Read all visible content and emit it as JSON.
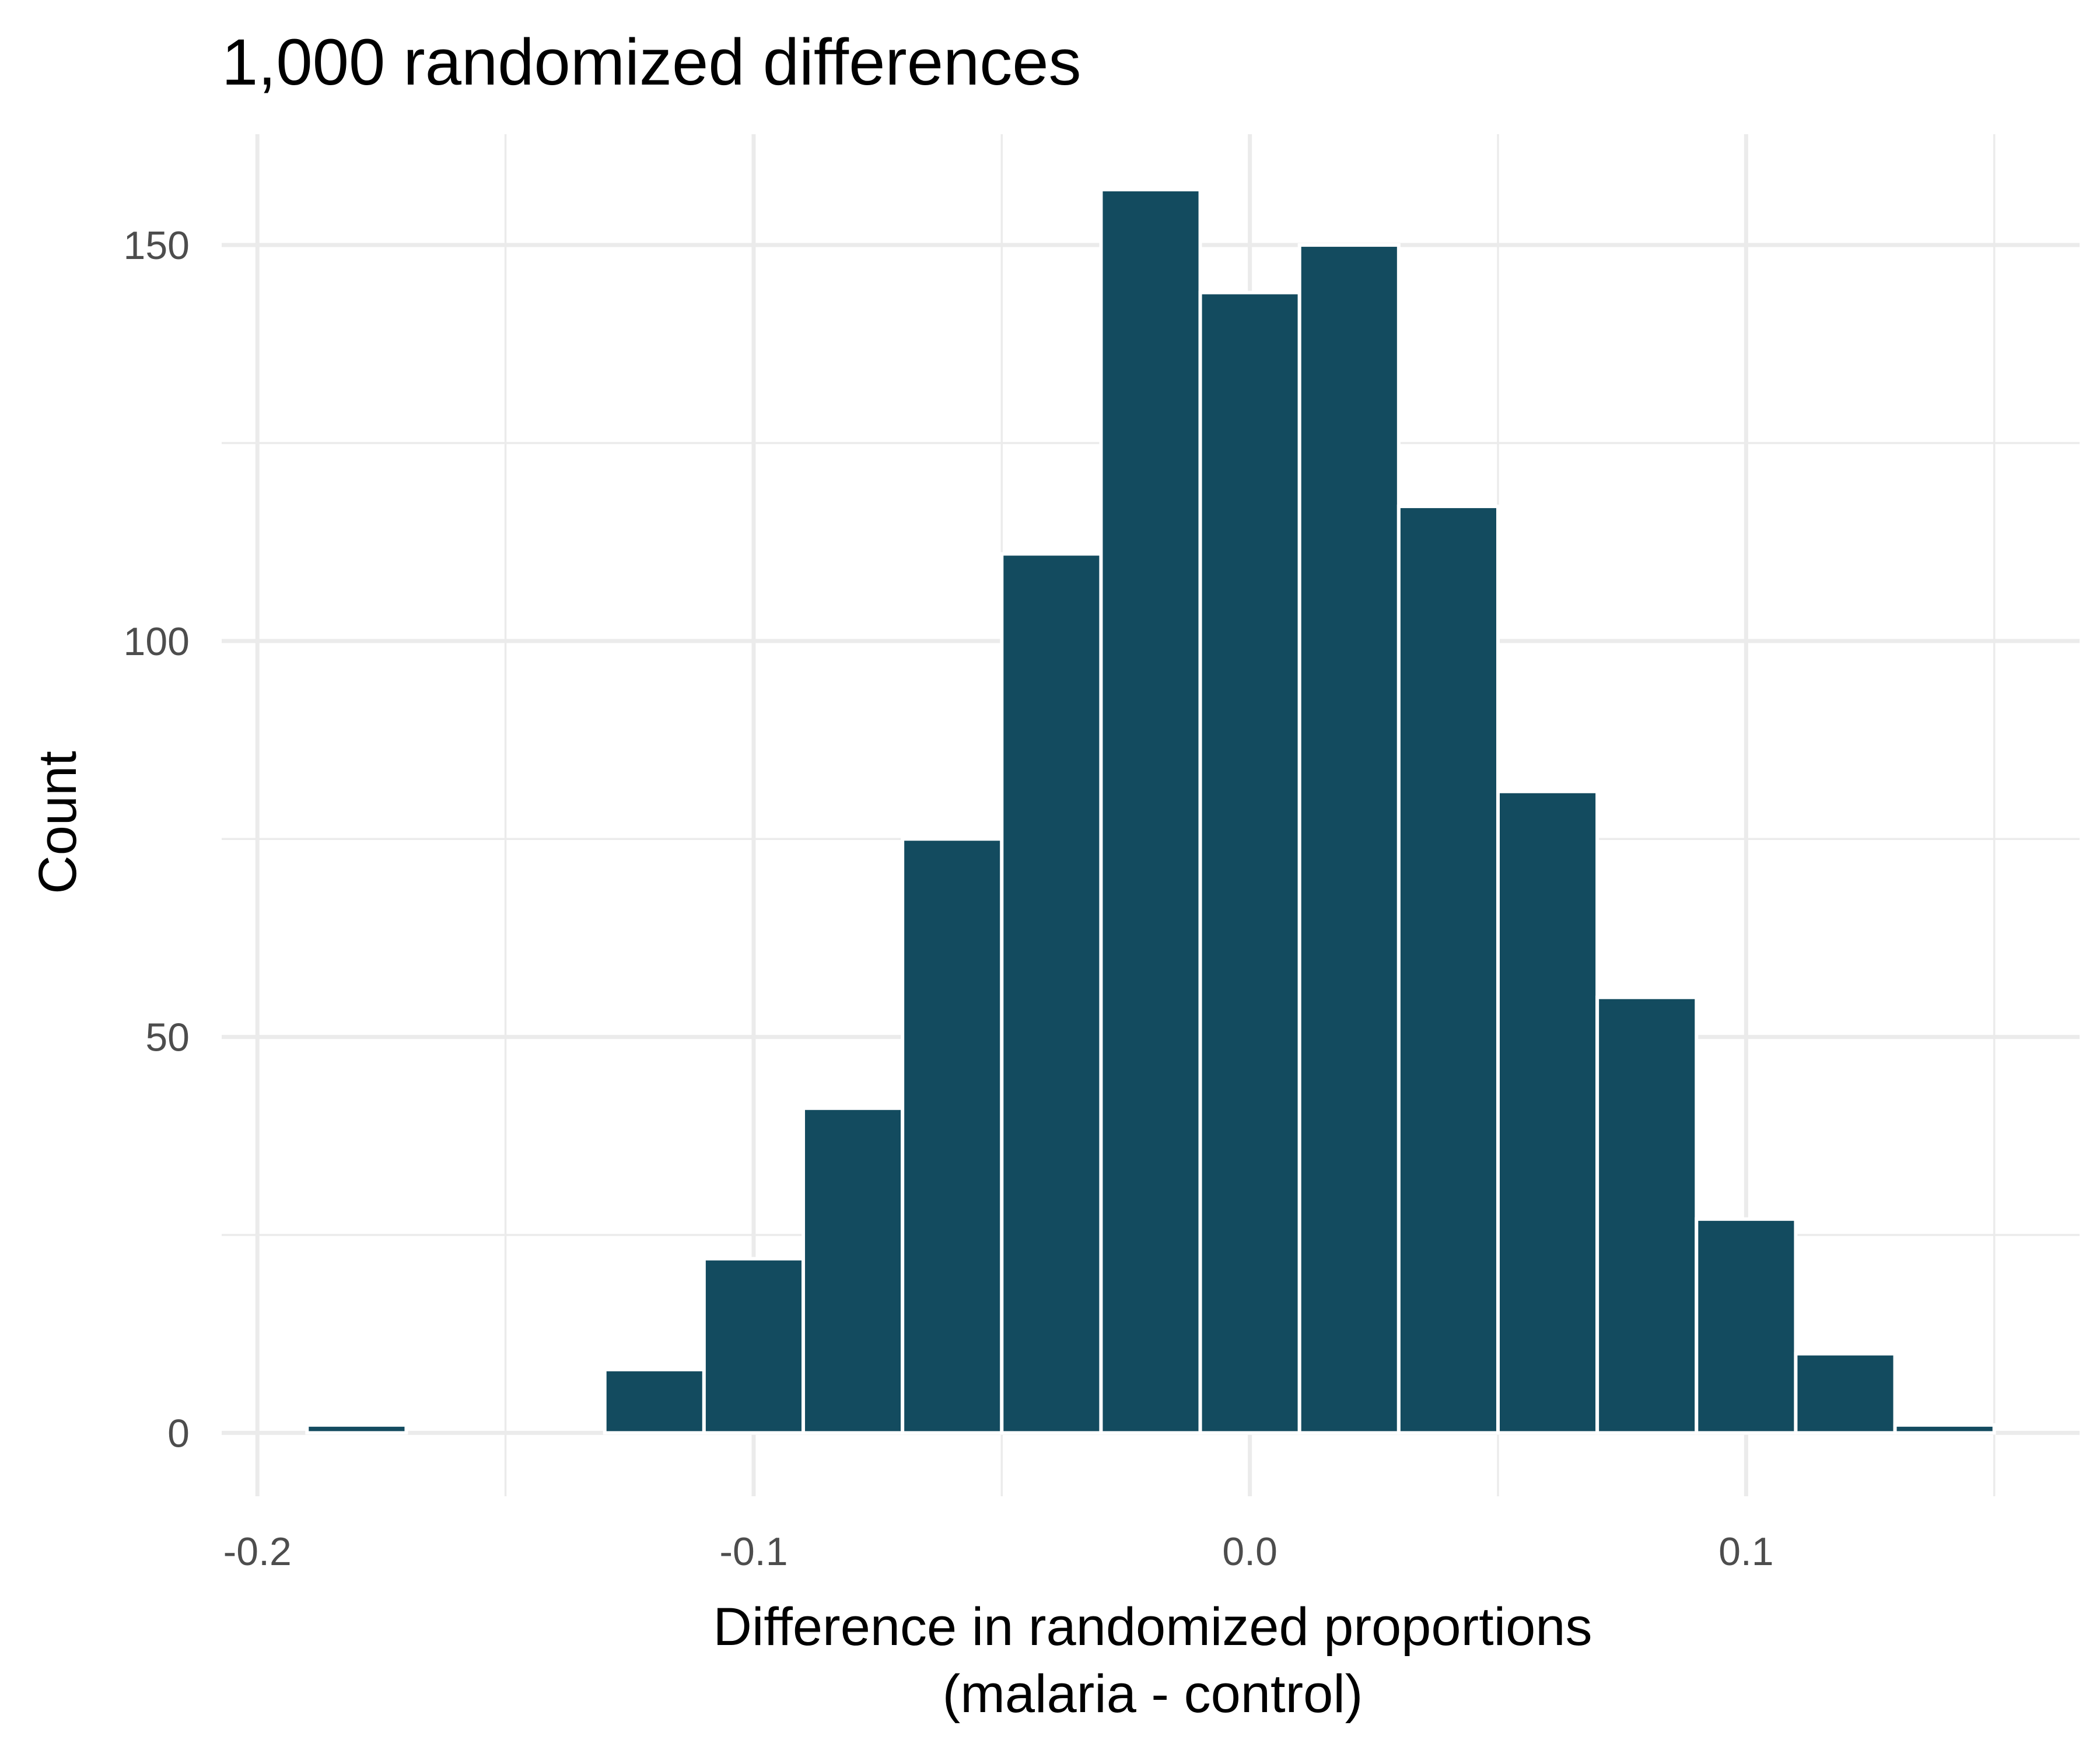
{
  "chart_data": {
    "type": "bar",
    "title": "1,000 randomized differences",
    "xlabel_lines": [
      "Difference in randomized proportions",
      "(malaria - control)"
    ],
    "ylabel": "Count",
    "xlim": [
      -0.2072,
      0.1672
    ],
    "ylim": [
      -8,
      164
    ],
    "x_ticks": [
      -0.2,
      -0.1,
      0.0,
      0.1
    ],
    "x_tick_labels": [
      "-0.2",
      "-0.1",
      "0.0",
      "0.1"
    ],
    "y_ticks": [
      0,
      50,
      100,
      150
    ],
    "y_tick_labels": [
      "0",
      "50",
      "100",
      "150"
    ],
    "grid": true,
    "bar_color": "#134b5f",
    "bins": [
      {
        "x0": -0.19,
        "x1": -0.17,
        "count": 1
      },
      {
        "x0": -0.17,
        "x1": -0.15,
        "count": 0
      },
      {
        "x0": -0.15,
        "x1": -0.13,
        "count": 0
      },
      {
        "x0": -0.13,
        "x1": -0.11,
        "count": 8
      },
      {
        "x0": -0.11,
        "x1": -0.09,
        "count": 22
      },
      {
        "x0": -0.09,
        "x1": -0.07,
        "count": 41
      },
      {
        "x0": -0.07,
        "x1": -0.05,
        "count": 75
      },
      {
        "x0": -0.05,
        "x1": -0.03,
        "count": 111
      },
      {
        "x0": -0.03,
        "x1": -0.01,
        "count": 157
      },
      {
        "x0": -0.01,
        "x1": 0.01,
        "count": 144
      },
      {
        "x0": 0.01,
        "x1": 0.03,
        "count": 150
      },
      {
        "x0": 0.03,
        "x1": 0.05,
        "count": 117
      },
      {
        "x0": 0.05,
        "x1": 0.07,
        "count": 81
      },
      {
        "x0": 0.07,
        "x1": 0.09,
        "count": 55
      },
      {
        "x0": 0.09,
        "x1": 0.11,
        "count": 27
      },
      {
        "x0": 0.11,
        "x1": 0.13,
        "count": 10
      },
      {
        "x0": 0.13,
        "x1": 0.15,
        "count": 1
      }
    ]
  }
}
